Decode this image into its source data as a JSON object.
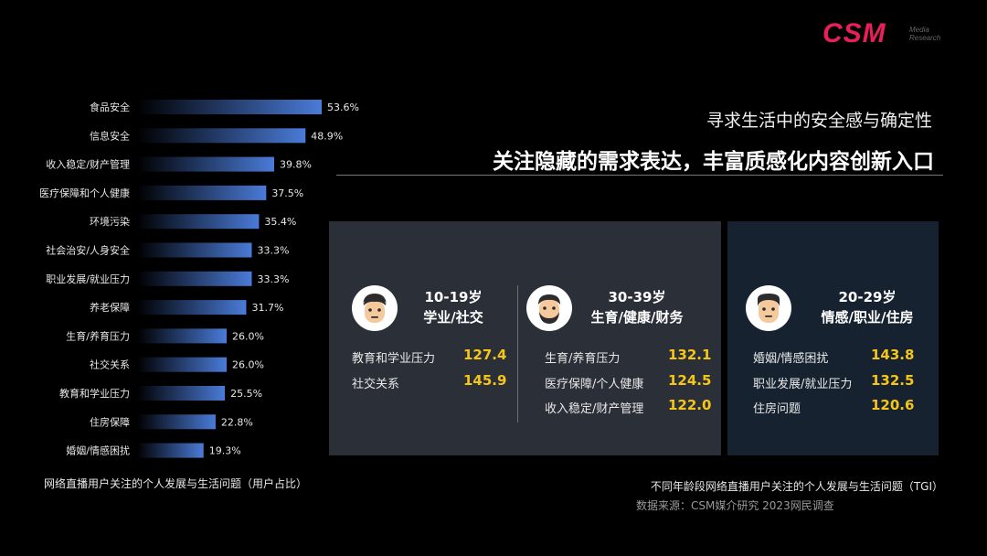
{
  "logo": {
    "mark": "CSM",
    "sub_line1": "Media",
    "sub_line2": "Research"
  },
  "headline": {
    "subtitle": "寻求生活中的安全感与确定性",
    "title": "关注隐藏的需求表达，丰富质感化内容创新入口"
  },
  "chart_data": {
    "type": "bar",
    "orientation": "horizontal",
    "categories": [
      "食品安全",
      "信息安全",
      "收入稳定/财产管理",
      "医疗保障和个人健康",
      "环境污染",
      "社会治安/人身安全",
      "职业发展/就业压力",
      "养老保障",
      "生育/养育压力",
      "社交关系",
      "教育和学业压力",
      "住房保障",
      "婚姻/情感困扰"
    ],
    "values": [
      53.6,
      48.9,
      39.8,
      37.5,
      35.4,
      33.3,
      33.3,
      31.7,
      26.0,
      26.0,
      25.5,
      22.8,
      19.3
    ],
    "value_labels": [
      "53.6%",
      "48.9%",
      "39.8%",
      "37.5%",
      "35.4%",
      "33.3%",
      "33.3%",
      "31.7%",
      "26.0%",
      "26.0%",
      "25.5%",
      "22.8%",
      "19.3%"
    ],
    "xlim": [
      0,
      53.6
    ],
    "bar_color": "#4a7bd8",
    "caption": "网络直播用户关注的个人发展与生活问题（用户占比）"
  },
  "tgi_groups": [
    {
      "age": "10-19岁",
      "focus": "学业/社交",
      "rows": [
        {
          "label": "教育和学业压力",
          "value": "127.4"
        },
        {
          "label": "社交关系",
          "value": "145.9"
        }
      ]
    },
    {
      "age": "30-39岁",
      "focus": "生育/健康/财务",
      "rows": [
        {
          "label": "生育/养育压力",
          "value": "132.1"
        },
        {
          "label": "医疗保障/个人健康",
          "value": "124.5"
        },
        {
          "label": "收入稳定/财产管理",
          "value": "122.0"
        }
      ]
    },
    {
      "age": "20-29岁",
      "focus": "情感/职业/住房",
      "rows": [
        {
          "label": "婚姻/情感困扰",
          "value": "143.8"
        },
        {
          "label": "职业发展/就业压力",
          "value": "132.5"
        },
        {
          "label": "住房问题",
          "value": "120.6"
        }
      ]
    }
  ],
  "footnote": "不同年龄段网络直播用户关注的个人发展与生活问题（TGI）",
  "source": "数据来源：CSM媒介研究 2023网民调查",
  "colors": {
    "accent_value": "#f5c518",
    "brand": "#e8205a",
    "panel_left": "#2b2f38",
    "panel_right": "#16222f"
  }
}
